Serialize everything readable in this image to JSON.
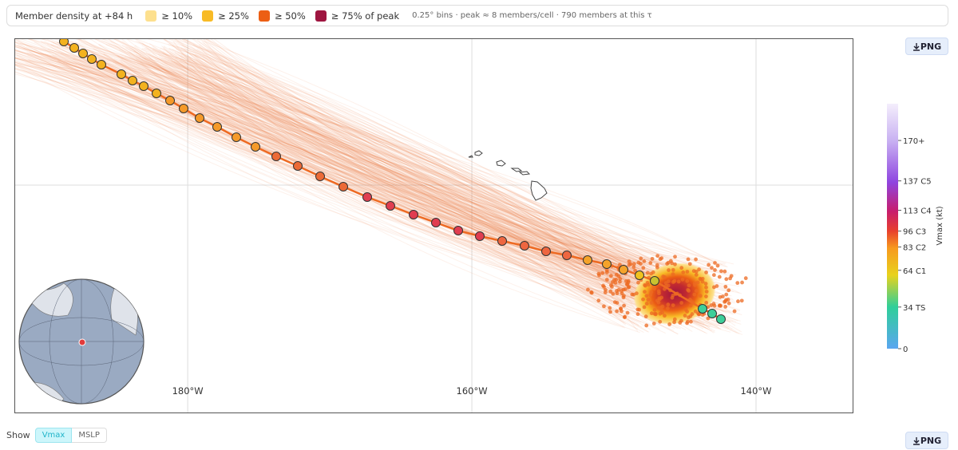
{
  "legend": {
    "title": "Member density at +84 h",
    "items": [
      {
        "label": "≥ 10%",
        "color": "#fde08e"
      },
      {
        "label": "≥ 25%",
        "color": "#f8bb26"
      },
      {
        "label": "≥ 50%",
        "color": "#ec5f14"
      },
      {
        "label": "≥ 75% of peak",
        "color": "#9e1540"
      }
    ],
    "note": "0.25° bins · peak ≈ 8 members/cell · 790 members at this τ"
  },
  "buttons": {
    "export_top": "PNG",
    "export_bottom": "PNG"
  },
  "map": {
    "xlim": [
      -192.2,
      -133.2
    ],
    "xticks": [
      {
        "value": -180,
        "label": "180°W"
      },
      {
        "value": -160,
        "label": "160°W"
      },
      {
        "value": -140,
        "label": "140°W"
      }
    ]
  },
  "colorbar": {
    "title": "Vmax (kt)",
    "lim": [
      0,
      200
    ],
    "ticks": [
      {
        "value": 170,
        "label": "170+"
      },
      {
        "value": 137,
        "label": "137 C5"
      },
      {
        "value": 113,
        "label": "113 C4"
      },
      {
        "value": 96,
        "label": "96 C3"
      },
      {
        "value": 83,
        "label": "83 C2"
      },
      {
        "value": 64,
        "label": "64 C1"
      },
      {
        "value": 34,
        "label": "34 TS"
      },
      0
    ]
  },
  "toggle": {
    "label": "Show",
    "options": [
      "Vmax",
      "MSLP"
    ],
    "active": 0
  }
}
